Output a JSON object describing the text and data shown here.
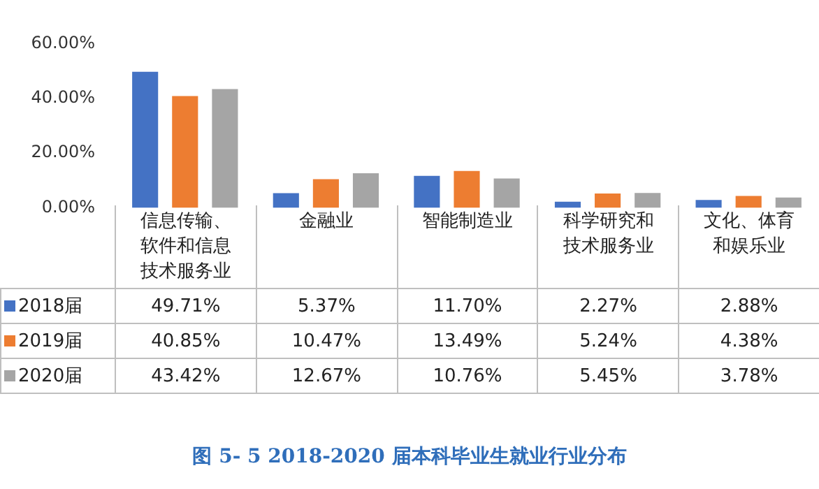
{
  "chart_data": {
    "type": "bar",
    "title": "图 5- 5   2018-2020 届本科毕业生就业行业分布",
    "categories": [
      "信息传输、软件和信息技术服务业",
      "金融业",
      "智能制造业",
      "科学研究和技术服务业",
      "文化、体育和娱乐业"
    ],
    "series": [
      {
        "name": "2018届",
        "color": "#4472c4",
        "values": [
          49.71,
          5.37,
          11.7,
          2.27,
          2.88
        ],
        "value_labels": [
          "49.71%",
          "5.37%",
          "11.70%",
          "2.27%",
          "2.88%"
        ]
      },
      {
        "name": "2019届",
        "color": "#ed7d31",
        "values": [
          40.85,
          10.47,
          13.49,
          5.24,
          4.38
        ],
        "value_labels": [
          "40.85%",
          "10.47%",
          "13.49%",
          "5.24%",
          "4.38%"
        ]
      },
      {
        "name": "2020届",
        "color": "#a5a5a5",
        "values": [
          43.42,
          12.67,
          10.76,
          5.45,
          3.78
        ],
        "value_labels": [
          "43.42%",
          "12.67%",
          "10.76%",
          "5.45%",
          "3.78%"
        ]
      }
    ],
    "ylim": [
      0,
      60
    ],
    "yticks": [
      {
        "value": 0,
        "label": "0.00%"
      },
      {
        "value": 20,
        "label": "20.00%"
      },
      {
        "value": 40,
        "label": "40.00%"
      },
      {
        "value": 60,
        "label": "60.00%"
      }
    ],
    "grid": false,
    "legend": "bottom left"
  }
}
